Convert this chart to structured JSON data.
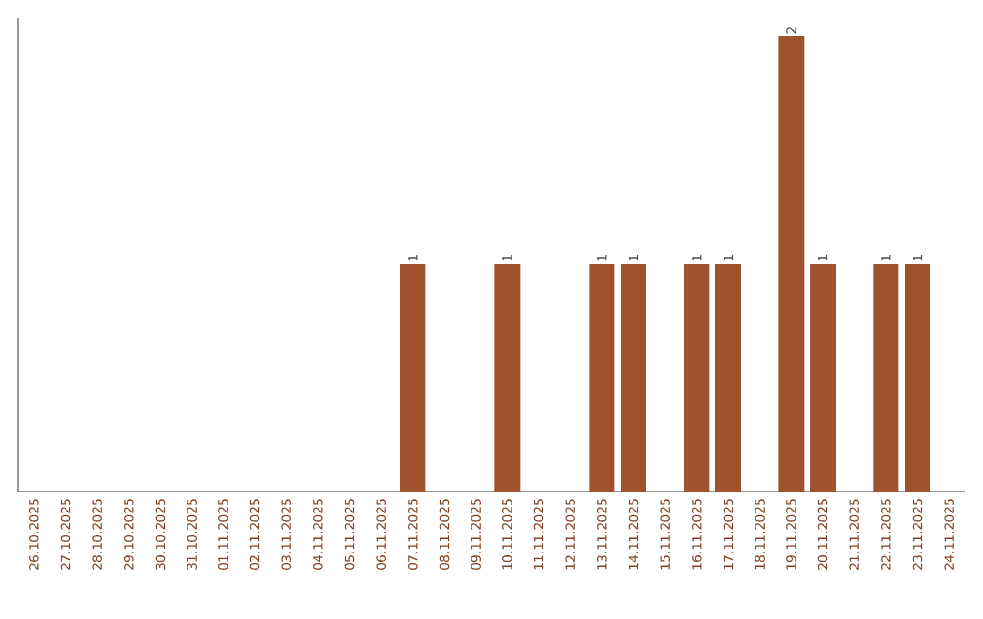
{
  "chart_data": {
    "type": "bar",
    "categories": [
      "26.10.2025",
      "27.10.2025",
      "28.10.2025",
      "29.10.2025",
      "30.10.2025",
      "31.10.2025",
      "01.11.2025",
      "02.11.2025",
      "03.11.2025",
      "04.11.2025",
      "05.11.2025",
      "06.11.2025",
      "07.11.2025",
      "08.11.2025",
      "09.11.2025",
      "10.11.2025",
      "11.11.2025",
      "12.11.2025",
      "13.11.2025",
      "14.11.2025",
      "15.11.2025",
      "16.11.2025",
      "17.11.2025",
      "18.11.2025",
      "19.11.2025",
      "20.11.2025",
      "21.11.2025",
      "22.11.2025",
      "23.11.2025",
      "24.11.2025"
    ],
    "values": [
      null,
      null,
      null,
      null,
      null,
      null,
      null,
      null,
      null,
      null,
      null,
      null,
      1,
      null,
      null,
      1,
      null,
      null,
      1,
      1,
      null,
      1,
      1,
      null,
      2,
      1,
      null,
      1,
      1,
      null
    ],
    "data_labels": true,
    "color": "#a0522d"
  }
}
